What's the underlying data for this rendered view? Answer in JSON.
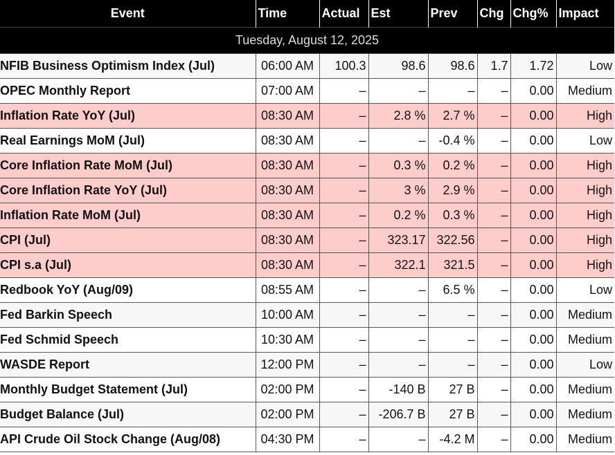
{
  "columns": {
    "event": "Event",
    "time": "Time",
    "actual": "Actual",
    "est": "Est",
    "prev": "Prev",
    "chg": "Chg",
    "chg_pct": "Chg%",
    "impact": "Impact"
  },
  "date_header": "Tuesday, August 12, 2025",
  "colors": {
    "high_impact_row": "#ffcccc",
    "header_bg": "#000000",
    "header_text": "#ffffff"
  },
  "rows": [
    {
      "event": "NFIB Business Optimism Index (Jul)",
      "time": "06:00 AM",
      "actual": "100.3",
      "est": "98.6",
      "prev": "98.6",
      "chg": "1.7",
      "chg_pct": "1.72",
      "impact": "Low"
    },
    {
      "event": "OPEC Monthly Report",
      "time": "07:00 AM",
      "actual": "–",
      "est": "–",
      "prev": "–",
      "chg": "–",
      "chg_pct": "0.00",
      "impact": "Medium"
    },
    {
      "event": "Inflation Rate YoY (Jul)",
      "time": "08:30 AM",
      "actual": "–",
      "est": "2.8 %",
      "prev": "2.7 %",
      "chg": "–",
      "chg_pct": "0.00",
      "impact": "High"
    },
    {
      "event": "Real Earnings MoM (Jul)",
      "time": "08:30 AM",
      "actual": "–",
      "est": "–",
      "prev": "-0.4 %",
      "chg": "–",
      "chg_pct": "0.00",
      "impact": "Low"
    },
    {
      "event": "Core Inflation Rate MoM (Jul)",
      "time": "08:30 AM",
      "actual": "–",
      "est": "0.3 %",
      "prev": "0.2 %",
      "chg": "–",
      "chg_pct": "0.00",
      "impact": "High"
    },
    {
      "event": "Core Inflation Rate YoY (Jul)",
      "time": "08:30 AM",
      "actual": "–",
      "est": "3 %",
      "prev": "2.9 %",
      "chg": "–",
      "chg_pct": "0.00",
      "impact": "High"
    },
    {
      "event": "Inflation Rate MoM (Jul)",
      "time": "08:30 AM",
      "actual": "–",
      "est": "0.2 %",
      "prev": "0.3 %",
      "chg": "–",
      "chg_pct": "0.00",
      "impact": "High"
    },
    {
      "event": "CPI (Jul)",
      "time": "08:30 AM",
      "actual": "–",
      "est": "323.17",
      "prev": "322.56",
      "chg": "–",
      "chg_pct": "0.00",
      "impact": "High"
    },
    {
      "event": "CPI s.a (Jul)",
      "time": "08:30 AM",
      "actual": "–",
      "est": "322.1",
      "prev": "321.5",
      "chg": "–",
      "chg_pct": "0.00",
      "impact": "High"
    },
    {
      "event": "Redbook YoY (Aug/09)",
      "time": "08:55 AM",
      "actual": "–",
      "est": "–",
      "prev": "6.5 %",
      "chg": "–",
      "chg_pct": "0.00",
      "impact": "Low"
    },
    {
      "event": "Fed Barkin Speech",
      "time": "10:00 AM",
      "actual": "–",
      "est": "–",
      "prev": "–",
      "chg": "–",
      "chg_pct": "0.00",
      "impact": "Medium"
    },
    {
      "event": "Fed Schmid Speech",
      "time": "10:30 AM",
      "actual": "–",
      "est": "–",
      "prev": "–",
      "chg": "–",
      "chg_pct": "0.00",
      "impact": "Medium"
    },
    {
      "event": "WASDE Report",
      "time": "12:00 PM",
      "actual": "–",
      "est": "–",
      "prev": "–",
      "chg": "–",
      "chg_pct": "0.00",
      "impact": "Low"
    },
    {
      "event": "Monthly Budget Statement (Jul)",
      "time": "02:00 PM",
      "actual": "–",
      "est": "-140 B",
      "prev": "27 B",
      "chg": "–",
      "chg_pct": "0.00",
      "impact": "Medium"
    },
    {
      "event": "Budget Balance (Jul)",
      "time": "02:00 PM",
      "actual": "–",
      "est": "-206.7 B",
      "prev": "27 B",
      "chg": "–",
      "chg_pct": "0.00",
      "impact": "Medium"
    },
    {
      "event": "API Crude Oil Stock Change (Aug/08)",
      "time": "04:30 PM",
      "actual": "–",
      "est": "–",
      "prev": "-4.2 M",
      "chg": "–",
      "chg_pct": "0.00",
      "impact": "Medium"
    }
  ]
}
